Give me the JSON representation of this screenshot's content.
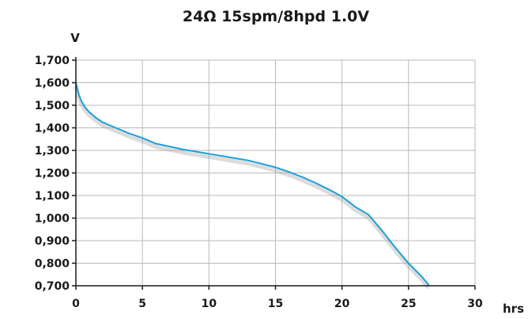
{
  "chart_data": {
    "type": "line",
    "title": "24Ω 15spm/8hpd 1.0V",
    "xlabel": "hrs",
    "ylabel": "V",
    "xlim": [
      0,
      30
    ],
    "ylim": [
      0.7,
      1.7
    ],
    "x_ticks": [
      0,
      5,
      10,
      15,
      20,
      25,
      30
    ],
    "x_tick_labels": [
      "0",
      "5",
      "10",
      "15",
      "20",
      "25",
      "30"
    ],
    "y_ticks": [
      0.7,
      0.8,
      0.9,
      1.0,
      1.1,
      1.2,
      1.3,
      1.4,
      1.5,
      1.6,
      1.7
    ],
    "y_tick_labels": [
      "0,700",
      "0,800",
      "0,900",
      "1,000",
      "1,100",
      "1,200",
      "1,300",
      "1,400",
      "1,500",
      "1,600",
      "1,700"
    ],
    "grid": true,
    "line_color": "#1a9fdb",
    "series": [
      {
        "x": [
          0,
          0.2,
          0.4,
          0.7,
          1.0,
          1.5,
          2.0,
          3.0,
          4.0,
          5.0,
          6.0,
          8.0,
          10.0,
          12.0,
          13.0,
          15.0,
          16.0,
          17.0,
          18.0,
          19.0,
          20.0,
          21.0,
          22.0,
          23.0,
          24.0,
          25.0,
          26.0,
          26.5
        ],
        "y": [
          1.6,
          1.55,
          1.52,
          1.49,
          1.47,
          1.445,
          1.425,
          1.4,
          1.375,
          1.355,
          1.33,
          1.305,
          1.285,
          1.265,
          1.255,
          1.225,
          1.205,
          1.182,
          1.156,
          1.127,
          1.095,
          1.05,
          1.015,
          0.945,
          0.87,
          0.8,
          0.74,
          0.705
        ]
      }
    ]
  }
}
